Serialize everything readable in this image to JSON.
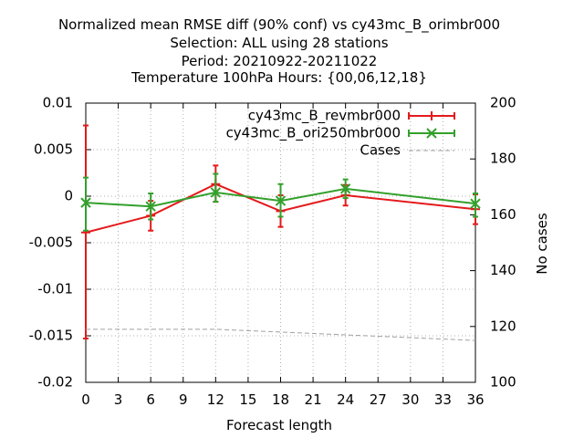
{
  "chart_data": {
    "type": "line",
    "title_lines": [
      "Normalized mean RMSE diff (90% conf) vs cy43mc_B_orimbr000",
      "Selection: ALL using    28 stations",
      "Period: 20210922-20211022",
      "Temperature 100hPa   Hours: {00,06,12,18}"
    ],
    "xlabel": "Forecast length",
    "ylabel": "",
    "y2label": "No cases",
    "xlim": [
      0,
      36
    ],
    "ylim": [
      -0.02,
      0.01
    ],
    "y2lim": [
      100,
      200
    ],
    "x_ticks": [
      0,
      3,
      6,
      9,
      12,
      15,
      18,
      21,
      24,
      27,
      30,
      33,
      36
    ],
    "y_ticks": [
      0.01,
      0.005,
      0,
      -0.005,
      -0.01,
      -0.015,
      -0.02
    ],
    "y_tick_labels": [
      "0.01",
      "0.005",
      "0",
      "-0.005",
      "-0.01",
      "-0.015",
      "-0.02"
    ],
    "y2_ticks": [
      200,
      180,
      160,
      140,
      120,
      100
    ],
    "grid": true,
    "legend_position": "top-right",
    "x": [
      0,
      6,
      12,
      18,
      24,
      36
    ],
    "series": [
      {
        "name": "cy43mc_B_revmbr000",
        "color": "#e41a1c",
        "marker": "plus",
        "values": [
          -0.0039,
          -0.0021,
          0.0013,
          -0.0016,
          0.0001,
          -0.0014
        ],
        "err_low": [
          -0.0153,
          -0.0037,
          -0.0006,
          -0.0033,
          -0.001,
          -0.003
        ],
        "err_high": [
          0.0076,
          -0.0005,
          0.0033,
          0.0001,
          0.0012,
          0.0002
        ],
        "axis": "y"
      },
      {
        "name": "cy43mc_B_ori250mbr000",
        "color": "#33a02c",
        "marker": "x",
        "values": [
          -0.0007,
          -0.0011,
          0.0004,
          -0.0005,
          0.0008,
          -0.0008
        ],
        "err_low": [
          -0.0037,
          -0.0025,
          -0.0006,
          -0.0022,
          -0.0002,
          -0.0022
        ],
        "err_high": [
          0.002,
          0.0003,
          0.0024,
          0.0013,
          0.0018,
          0.0003
        ],
        "axis": "y"
      },
      {
        "name": "Cases",
        "color": "#a0a0a0",
        "marker": "none",
        "dashed": true,
        "values": [
          119,
          119,
          119,
          118,
          117,
          115
        ],
        "axis": "y2"
      }
    ]
  }
}
